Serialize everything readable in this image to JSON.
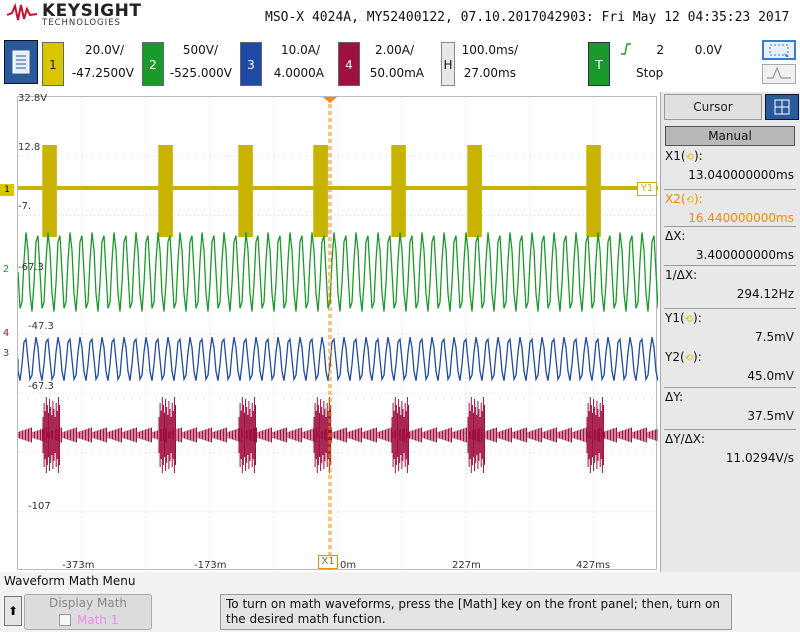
{
  "header": {
    "brand": "KEYSIGHT",
    "brand_sub": "TECHNOLOGIES",
    "instrument_line": "MSO-X 4024A, MY52400122, 07.10.2017042903: Fri May 12 04:35:23 2017"
  },
  "channels": [
    {
      "num": "1",
      "scale": "20.0V/",
      "offset": "-47.2500V",
      "color": "#c8b400",
      "text_color": "#c8b400"
    },
    {
      "num": "2",
      "scale": "500V/",
      "offset": "-525.000V",
      "color": "#1a9a2a",
      "text_color": "#ffffff"
    },
    {
      "num": "3",
      "scale": "10.0A/",
      "offset": "4.0000A",
      "color": "#1f4aa8",
      "text_color": "#4a8ae8"
    },
    {
      "num": "4",
      "scale": "2.00A/",
      "offset": "50.00mA",
      "color": "#a01040",
      "text_color": "#ff80b0"
    }
  ],
  "horizontal": {
    "label": "H",
    "scale": "100.0ms/",
    "position": "27.00ms"
  },
  "trigger": {
    "label": "T",
    "source": "2",
    "level": "0.0V",
    "state": "Stop",
    "edge_icon": "rising-edge-icon"
  },
  "y_labels": [
    "32.8V",
    "12.8",
    "-7.",
    "-67.3",
    "-47.3",
    "-67.3",
    "-107"
  ],
  "x_labels": [
    "-373m",
    "-173m",
    "0m",
    "227m",
    "427ms"
  ],
  "cursor_markers": {
    "x1": "X1",
    "y1": "Y1"
  },
  "cursor_panel": {
    "tab": "Cursor",
    "mode": "Manual",
    "rows": [
      {
        "label": "X1(",
        "knob": "⟲",
        "close": "):",
        "value": "13.040000000ms",
        "color": "#111111"
      },
      {
        "label": "X2(",
        "knob": "⟲",
        "close": "):",
        "value": "16.440000000ms",
        "color": "#f08c00"
      },
      {
        "label": "ΔX:",
        "knob": "",
        "close": "",
        "value": "3.400000000ms",
        "color": "#111111"
      },
      {
        "label": "1/ΔX:",
        "knob": "",
        "close": "",
        "value": "294.12Hz",
        "color": "#111111"
      },
      {
        "label": "Y1(",
        "knob": "⟲",
        "close": "):",
        "value": "7.5mV",
        "color": "#111111"
      },
      {
        "label": "Y2(",
        "knob": "⟲",
        "close": "):",
        "value": "45.0mV",
        "color": "#111111"
      },
      {
        "label": "ΔY:",
        "knob": "",
        "close": "",
        "value": "37.5mV",
        "color": "#111111"
      },
      {
        "label": "ΔY/ΔX:",
        "knob": "",
        "close": "",
        "value": "11.0294V/s",
        "color": "#111111"
      }
    ]
  },
  "bottom": {
    "menu_title": "Waveform Math Menu",
    "back": "⬆",
    "display_math_label": "Display Math",
    "display_math_sub": "Math 1",
    "message": "To turn on math waveforms, press the [Math] key on the front panel; then, turn on the desired math function."
  }
}
